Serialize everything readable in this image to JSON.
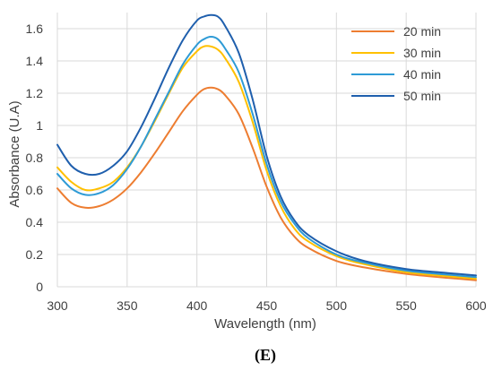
{
  "chart_data": {
    "type": "line",
    "xlabel": "Wavelength (nm)",
    "ylabel": "Absorbance (U.A)",
    "xlim": [
      300,
      600
    ],
    "ylim": [
      0,
      1.7
    ],
    "xticks": [
      "300",
      "350",
      "400",
      "450",
      "500",
      "550",
      "600"
    ],
    "yticks": [
      "0",
      "0.2",
      "0.4",
      "0.6",
      "0.8",
      "1",
      "1.2",
      "1.4",
      "1.6"
    ],
    "grid": true,
    "legend_position": "top-right",
    "panel_label": "(E)",
    "x": [
      300,
      310,
      320,
      330,
      340,
      350,
      360,
      370,
      380,
      390,
      400,
      405,
      410,
      415,
      420,
      430,
      440,
      450,
      460,
      470,
      480,
      500,
      520,
      550,
      580,
      600
    ],
    "series": [
      {
        "name": "20 min",
        "color": "#ED7D31",
        "values": [
          0.61,
          0.52,
          0.49,
          0.5,
          0.54,
          0.61,
          0.71,
          0.83,
          0.96,
          1.09,
          1.19,
          1.225,
          1.235,
          1.225,
          1.19,
          1.07,
          0.86,
          0.62,
          0.43,
          0.31,
          0.24,
          0.16,
          0.12,
          0.08,
          0.055,
          0.04
        ]
      },
      {
        "name": "30 min",
        "color": "#FFC000",
        "values": [
          0.74,
          0.65,
          0.6,
          0.61,
          0.65,
          0.74,
          0.87,
          1.03,
          1.2,
          1.36,
          1.46,
          1.49,
          1.49,
          1.47,
          1.42,
          1.27,
          1.02,
          0.72,
          0.5,
          0.36,
          0.28,
          0.19,
          0.14,
          0.09,
          0.065,
          0.05
        ]
      },
      {
        "name": "40 min",
        "color": "#2E9BD6",
        "values": [
          0.7,
          0.61,
          0.57,
          0.58,
          0.63,
          0.73,
          0.87,
          1.04,
          1.21,
          1.38,
          1.5,
          1.535,
          1.55,
          1.535,
          1.48,
          1.33,
          1.07,
          0.76,
          0.53,
          0.39,
          0.3,
          0.2,
          0.15,
          0.1,
          0.075,
          0.06
        ]
      },
      {
        "name": "50 min",
        "color": "#1F5FAD",
        "values": [
          0.88,
          0.75,
          0.7,
          0.7,
          0.75,
          0.84,
          0.99,
          1.17,
          1.36,
          1.53,
          1.65,
          1.675,
          1.685,
          1.675,
          1.62,
          1.45,
          1.16,
          0.81,
          0.56,
          0.41,
          0.32,
          0.22,
          0.16,
          0.11,
          0.085,
          0.07
        ]
      }
    ]
  }
}
